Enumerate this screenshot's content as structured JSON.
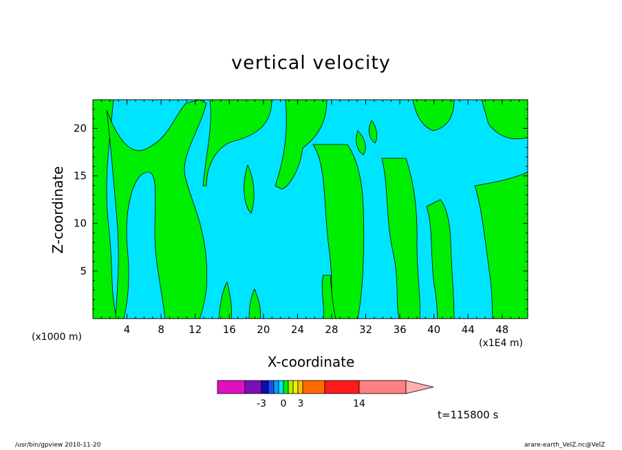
{
  "chart_data": {
    "type": "heatmap",
    "title": "vertical velocity",
    "xlabel": "X-coordinate",
    "ylabel": "Z-coordinate",
    "x_unit_left": "(x1000 m)",
    "x_unit_right": "(x1E4 m)",
    "xlim": [
      0,
      51
    ],
    "ylim": [
      0,
      23
    ],
    "x_ticks": [
      "4",
      "8",
      "12",
      "16",
      "20",
      "24",
      "28",
      "32",
      "36",
      "40",
      "44",
      "48"
    ],
    "y_ticks": [
      "5",
      "10",
      "15",
      "20"
    ],
    "x_tick_values": [
      4,
      8,
      12,
      16,
      20,
      24,
      28,
      32,
      36,
      40,
      44,
      48
    ],
    "y_tick_values": [
      5,
      10,
      15,
      20
    ],
    "colors": {
      "cyan_band": "#00e5ff",
      "green_band": "#00ee00",
      "contour_line": "#000000"
    },
    "colorbar": {
      "tick_labels": [
        "-3",
        "0",
        "3",
        "14"
      ],
      "tick_values": [
        -3,
        0,
        3,
        14
      ],
      "segments": [
        {
          "color": "#e010c0",
          "w": 40
        },
        {
          "color": "#7b0fb8",
          "w": 24
        },
        {
          "color": "#0b0bb5",
          "w": 10
        },
        {
          "color": "#1a4cf0",
          "w": 8
        },
        {
          "color": "#00a0ff",
          "w": 7
        },
        {
          "color": "#00e5ff",
          "w": 7
        },
        {
          "color": "#00ee00",
          "w": 7
        },
        {
          "color": "#b6f000",
          "w": 7
        },
        {
          "color": "#f0f000",
          "w": 7
        },
        {
          "color": "#ffc000",
          "w": 7
        },
        {
          "color": "#ff6a00",
          "w": 32
        },
        {
          "color": "#ff1a1a",
          "w": 50
        },
        {
          "color": "#ff8080",
          "w": 68
        }
      ],
      "arrow_color": "#ffb0b0"
    },
    "time_label": "t=115800 s"
  },
  "footer": {
    "left": "/usr/bin/gpview   2010-11-20",
    "right": "arare-earth_VelZ.nc@VelZ"
  }
}
